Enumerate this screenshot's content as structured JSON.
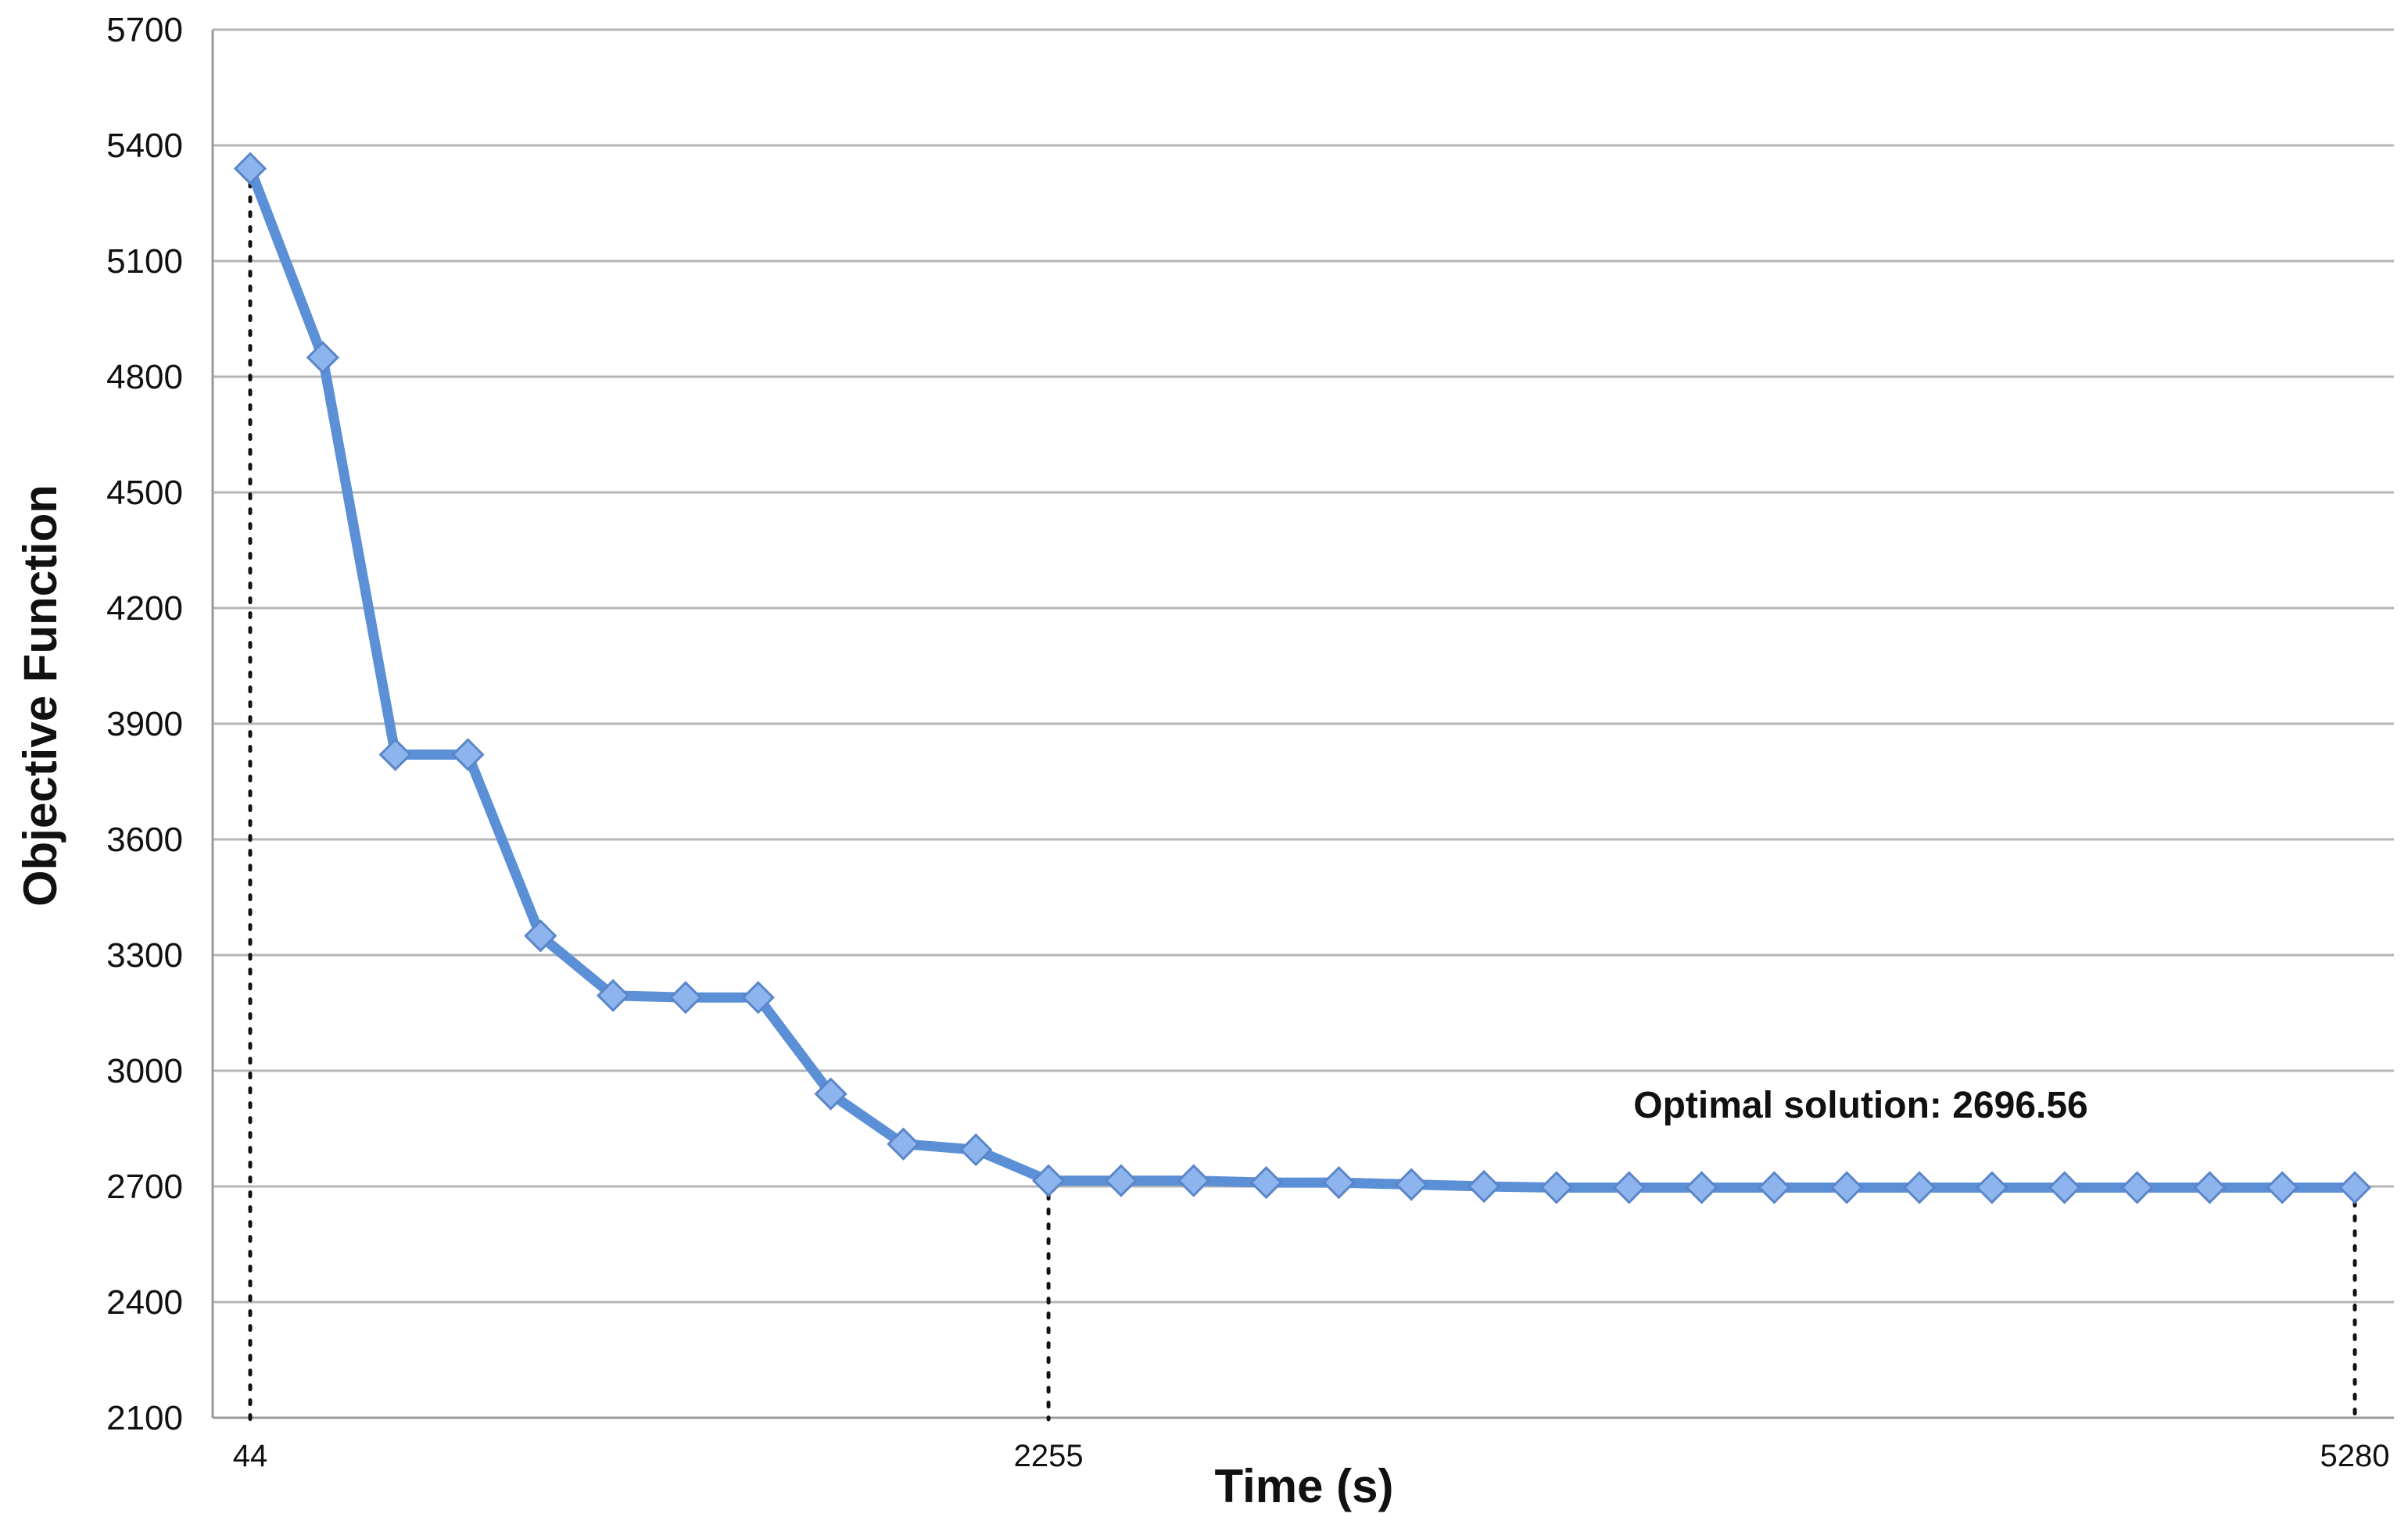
{
  "chart_data": {
    "type": "line",
    "title": "",
    "xlabel": "Time (s)",
    "ylabel": "Objective Function",
    "ylim": [
      2100,
      5700
    ],
    "yticks": [
      "2100",
      "2400",
      "2700",
      "3000",
      "3300",
      "3600",
      "3900",
      "4200",
      "4500",
      "4800",
      "5100",
      "5400",
      "5700"
    ],
    "xtick_labels": [
      "44",
      "2255",
      "5280"
    ],
    "grid": "horizontal",
    "legend": "none",
    "series_color": "#5b8fd6",
    "marker_color": "#8db4ec",
    "annotation": "Optimal solution: 2696.56",
    "series": [
      {
        "values": [
          5340,
          4850,
          3820,
          3820,
          3350,
          3195,
          3190,
          3190,
          2940,
          2810,
          2795,
          2715,
          2715,
          2715,
          2710,
          2710,
          2705,
          2700,
          2697,
          2697,
          2697,
          2697,
          2697,
          2697,
          2697,
          2697,
          2697,
          2697,
          2697,
          2697
        ]
      }
    ],
    "marked_points": [
      {
        "index": 0,
        "label": "44"
      },
      {
        "index": 11,
        "label": "2255"
      },
      {
        "index": 29,
        "label": "5280"
      }
    ]
  }
}
